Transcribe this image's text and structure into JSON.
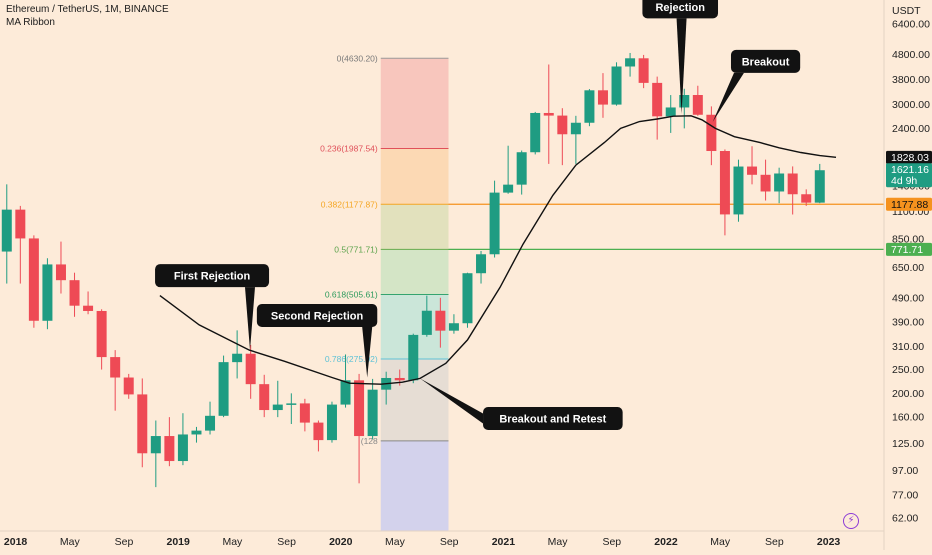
{
  "header": {
    "title": "Ethereum / TetherUS, 1M, BINANCE",
    "indicator": "MA Ribbon",
    "currency": "USDT"
  },
  "colors": {
    "background": "#fdebd9",
    "up": "#1f9c82",
    "down": "#ee4a55",
    "ma": "#111111",
    "fib_0": "#f8c6bd",
    "fib_0236": "#fcd9b4",
    "fib_0382": "#e2e1bd",
    "fib_05": "#d4e5c6",
    "fib_0618": "#cbe6d9",
    "fib_0786": "#e6ddd4",
    "fib_1": "#d3d2ec",
    "level_1177": "#f5921e",
    "level_771": "#4caf50",
    "price_tag": "#1f9c82"
  },
  "chart_data": {
    "type": "candlestick",
    "y_scale": "log",
    "ylim": [
      55,
      8000
    ],
    "xlim": [
      0,
      63
    ],
    "months": [
      "2018-01",
      "2018-02",
      "2018-03",
      "2018-04",
      "2018-05",
      "2018-06",
      "2018-07",
      "2018-08",
      "2018-09",
      "2018-10",
      "2018-11",
      "2018-12",
      "2019-01",
      "2019-02",
      "2019-03",
      "2019-04",
      "2019-05",
      "2019-06",
      "2019-07",
      "2019-08",
      "2019-09",
      "2019-10",
      "2019-11",
      "2019-12",
      "2020-01",
      "2020-02",
      "2020-03",
      "2020-04",
      "2020-05",
      "2020-06",
      "2020-07",
      "2020-08",
      "2020-09",
      "2020-10",
      "2020-11",
      "2020-12",
      "2021-01",
      "2021-02",
      "2021-03",
      "2021-04",
      "2021-05",
      "2021-06",
      "2021-07",
      "2021-08",
      "2021-09",
      "2021-10",
      "2021-11",
      "2021-12",
      "2022-01",
      "2022-02",
      "2022-03",
      "2022-04",
      "2022-05",
      "2022-06",
      "2022-07",
      "2022-08",
      "2022-09",
      "2022-10",
      "2022-11",
      "2022-12",
      "2023-01"
    ],
    "candles": [
      {
        "o": 756,
        "h": 1420,
        "l": 560,
        "c": 1120
      },
      {
        "o": 1120,
        "h": 1160,
        "l": 560,
        "c": 855
      },
      {
        "o": 855,
        "h": 880,
        "l": 370,
        "c": 395
      },
      {
        "o": 395,
        "h": 710,
        "l": 365,
        "c": 670
      },
      {
        "o": 670,
        "h": 830,
        "l": 510,
        "c": 578
      },
      {
        "o": 578,
        "h": 620,
        "l": 410,
        "c": 455
      },
      {
        "o": 455,
        "h": 520,
        "l": 420,
        "c": 433
      },
      {
        "o": 433,
        "h": 440,
        "l": 250,
        "c": 281
      },
      {
        "o": 281,
        "h": 300,
        "l": 170,
        "c": 232
      },
      {
        "o": 232,
        "h": 240,
        "l": 190,
        "c": 198
      },
      {
        "o": 198,
        "h": 230,
        "l": 100,
        "c": 114
      },
      {
        "o": 114,
        "h": 155,
        "l": 83,
        "c": 134
      },
      {
        "o": 134,
        "h": 160,
        "l": 101,
        "c": 106
      },
      {
        "o": 106,
        "h": 166,
        "l": 102,
        "c": 136
      },
      {
        "o": 136,
        "h": 146,
        "l": 126,
        "c": 141
      },
      {
        "o": 141,
        "h": 185,
        "l": 136,
        "c": 162
      },
      {
        "o": 162,
        "h": 285,
        "l": 160,
        "c": 268
      },
      {
        "o": 268,
        "h": 361,
        "l": 230,
        "c": 290
      },
      {
        "o": 290,
        "h": 315,
        "l": 190,
        "c": 218
      },
      {
        "o": 218,
        "h": 238,
        "l": 160,
        "c": 171
      },
      {
        "o": 171,
        "h": 225,
        "l": 160,
        "c": 180
      },
      {
        "o": 180,
        "h": 200,
        "l": 150,
        "c": 182
      },
      {
        "o": 182,
        "h": 190,
        "l": 140,
        "c": 152
      },
      {
        "o": 152,
        "h": 155,
        "l": 116,
        "c": 129
      },
      {
        "o": 129,
        "h": 185,
        "l": 126,
        "c": 180
      },
      {
        "o": 180,
        "h": 288,
        "l": 175,
        "c": 226
      },
      {
        "o": 226,
        "h": 240,
        "l": 86,
        "c": 134
      },
      {
        "o": 134,
        "h": 229,
        "l": 130,
        "c": 207
      },
      {
        "o": 207,
        "h": 245,
        "l": 180,
        "c": 231
      },
      {
        "o": 231,
        "h": 250,
        "l": 215,
        "c": 226
      },
      {
        "o": 226,
        "h": 350,
        "l": 220,
        "c": 346
      },
      {
        "o": 346,
        "h": 500,
        "l": 340,
        "c": 434
      },
      {
        "o": 434,
        "h": 490,
        "l": 307,
        "c": 360
      },
      {
        "o": 360,
        "h": 420,
        "l": 350,
        "c": 386
      },
      {
        "o": 386,
        "h": 620,
        "l": 370,
        "c": 617
      },
      {
        "o": 617,
        "h": 760,
        "l": 560,
        "c": 737
      },
      {
        "o": 737,
        "h": 1470,
        "l": 715,
        "c": 1314
      },
      {
        "o": 1314,
        "h": 2040,
        "l": 1300,
        "c": 1416
      },
      {
        "o": 1416,
        "h": 1950,
        "l": 1290,
        "c": 1919
      },
      {
        "o": 1919,
        "h": 2800,
        "l": 1880,
        "c": 2773
      },
      {
        "o": 2773,
        "h": 4370,
        "l": 1720,
        "c": 2706
      },
      {
        "o": 2706,
        "h": 2900,
        "l": 1700,
        "c": 2271
      },
      {
        "o": 2271,
        "h": 2700,
        "l": 1720,
        "c": 2530
      },
      {
        "o": 2530,
        "h": 3470,
        "l": 2450,
        "c": 3430
      },
      {
        "o": 3430,
        "h": 4030,
        "l": 2650,
        "c": 3000
      },
      {
        "o": 3000,
        "h": 4460,
        "l": 2970,
        "c": 4288
      },
      {
        "o": 4288,
        "h": 4868,
        "l": 3900,
        "c": 4631
      },
      {
        "o": 4631,
        "h": 4780,
        "l": 3500,
        "c": 3677
      },
      {
        "o": 3677,
        "h": 3900,
        "l": 2160,
        "c": 2687
      },
      {
        "o": 2687,
        "h": 3280,
        "l": 2300,
        "c": 2920
      },
      {
        "o": 2920,
        "h": 3480,
        "l": 2400,
        "c": 3282
      },
      {
        "o": 3282,
        "h": 3580,
        "l": 2700,
        "c": 2727
      },
      {
        "o": 2727,
        "h": 2950,
        "l": 1700,
        "c": 1941
      },
      {
        "o": 1941,
        "h": 1970,
        "l": 880,
        "c": 1071
      },
      {
        "o": 1071,
        "h": 1790,
        "l": 1000,
        "c": 1678
      },
      {
        "o": 1678,
        "h": 2030,
        "l": 1420,
        "c": 1553
      },
      {
        "o": 1553,
        "h": 1790,
        "l": 1220,
        "c": 1328
      },
      {
        "o": 1328,
        "h": 1660,
        "l": 1190,
        "c": 1572
      },
      {
        "o": 1572,
        "h": 1680,
        "l": 1070,
        "c": 1294
      },
      {
        "o": 1294,
        "h": 1355,
        "l": 1160,
        "c": 1196
      },
      {
        "o": 1196,
        "h": 1720,
        "l": 1190,
        "c": 1621
      }
    ],
    "ma_line": [
      {
        "x": 11.3,
        "y": 500
      },
      {
        "x": 14.2,
        "y": 380
      },
      {
        "x": 17.9,
        "y": 300
      },
      {
        "x": 20.5,
        "y": 270
      },
      {
        "x": 24.0,
        "y": 232
      },
      {
        "x": 25.3,
        "y": 220
      },
      {
        "x": 27.6,
        "y": 218
      },
      {
        "x": 29.2,
        "y": 222
      },
      {
        "x": 30.5,
        "y": 230
      },
      {
        "x": 32.4,
        "y": 265
      },
      {
        "x": 34.0,
        "y": 330
      },
      {
        "x": 36.4,
        "y": 540
      },
      {
        "x": 38.1,
        "y": 810
      },
      {
        "x": 40.3,
        "y": 1280
      },
      {
        "x": 42.0,
        "y": 1700
      },
      {
        "x": 44.1,
        "y": 2100
      },
      {
        "x": 45.3,
        "y": 2400
      },
      {
        "x": 46.7,
        "y": 2560
      },
      {
        "x": 48.0,
        "y": 2620
      },
      {
        "x": 49.2,
        "y": 2690
      },
      {
        "x": 50.5,
        "y": 2700
      },
      {
        "x": 51.3,
        "y": 2600
      },
      {
        "x": 52.3,
        "y": 2400
      },
      {
        "x": 53.7,
        "y": 2220
      },
      {
        "x": 55.6,
        "y": 2100
      },
      {
        "x": 57.0,
        "y": 2000
      },
      {
        "x": 58.6,
        "y": 1915
      },
      {
        "x": 60.0,
        "y": 1860
      },
      {
        "x": 61.2,
        "y": 1830
      }
    ],
    "fib_box": {
      "x_start": 27.6,
      "x_end": 32.6,
      "top": 4630.2,
      "bottom": 55,
      "levels": [
        {
          "ratio": 0,
          "value": 4630.2,
          "label": "0(4630.20)"
        },
        {
          "ratio": 0.236,
          "value": 1987.54,
          "label": "0.236(1987.54)"
        },
        {
          "ratio": 0.382,
          "value": 1177.87,
          "label": "0.382(1177.87)"
        },
        {
          "ratio": 0.5,
          "value": 771.71,
          "label": "0.5(771.71)"
        },
        {
          "ratio": 0.618,
          "value": 505.61,
          "label": "0.618(505.61)"
        },
        {
          "ratio": 0.786,
          "value": 275.92,
          "label": "0.786(275.92)"
        },
        {
          "ratio": 1,
          "value": 128,
          "label": "(128"
        }
      ]
    },
    "h_lines": [
      {
        "value": 1177.88,
        "label": "1177.88",
        "color": "#f5921e",
        "x_start": 32.6
      },
      {
        "value": 771.71,
        "label": "771.71",
        "color": "#4caf50",
        "x_start": 32.6
      }
    ],
    "y_ticks": [
      "62.00",
      "77.00",
      "97.00",
      "125.00",
      "160.00",
      "200.00",
      "250.00",
      "310.00",
      "390.00",
      "490.00",
      "650.00",
      "850.00",
      "1100.00",
      "1400.00",
      "1828.03",
      "2400.00",
      "3000.00",
      "3800.00",
      "4800.00",
      "6400.00"
    ],
    "y_tick_values": [
      62,
      77,
      97,
      125,
      160,
      200,
      250,
      310,
      390,
      490,
      650,
      850,
      1100,
      1400,
      1828.03,
      2400,
      3000,
      3800,
      4800,
      6400
    ],
    "x_ticks": [
      {
        "label": "2018",
        "x": 0.65,
        "bold": true
      },
      {
        "label": "May",
        "x": 4.65,
        "bold": false
      },
      {
        "label": "Sep",
        "x": 8.65,
        "bold": false
      },
      {
        "label": "2019",
        "x": 12.65,
        "bold": true
      },
      {
        "label": "May",
        "x": 16.65,
        "bold": false
      },
      {
        "label": "Sep",
        "x": 20.65,
        "bold": false
      },
      {
        "label": "2020",
        "x": 24.65,
        "bold": true
      },
      {
        "label": "May",
        "x": 28.65,
        "bold": false
      },
      {
        "label": "Sep",
        "x": 32.65,
        "bold": false
      },
      {
        "label": "2021",
        "x": 36.65,
        "bold": true
      },
      {
        "label": "May",
        "x": 40.65,
        "bold": false
      },
      {
        "label": "Sep",
        "x": 44.65,
        "bold": false
      },
      {
        "label": "2022",
        "x": 48.65,
        "bold": true
      },
      {
        "label": "May",
        "x": 52.65,
        "bold": false
      },
      {
        "label": "Sep",
        "x": 56.65,
        "bold": false
      },
      {
        "label": "2023",
        "x": 60.65,
        "bold": true
      }
    ],
    "price_tags": [
      {
        "value": 1828.03,
        "text": "1828.03",
        "bg": "#121212",
        "fg": "#ffffff"
      },
      {
        "value": 1621.16,
        "text": "1621.16",
        "sub": "4d 9h",
        "bg": "#1f9c82",
        "fg": "#ffffff"
      },
      {
        "value": 1177.88,
        "text": "1177.88",
        "bg": "#f5921e",
        "fg": "#111111"
      },
      {
        "value": 771.71,
        "text": "771.71",
        "bg": "#4caf50",
        "fg": "#ffffff"
      }
    ],
    "annotations": [
      {
        "text": "First Rejection",
        "x": 15.15,
        "y": 603,
        "tip_x": 17.95,
        "tip_y": 300
      },
      {
        "text": "Second Rejection",
        "x": 22.9,
        "y": 415,
        "tip_x": 26.6,
        "tip_y": 232
      },
      {
        "text": "Breakout and Retest",
        "x": 40.3,
        "y": 158,
        "tip_x": 30.5,
        "tip_y": 230
      },
      {
        "text": "Rejection",
        "x": 49.7,
        "y": 7500,
        "tip_x": 49.8,
        "tip_y": 2750
      },
      {
        "text": "Breakout",
        "x": 56.0,
        "y": 4500,
        "tip_x": 52.1,
        "tip_y": 2550
      }
    ]
  }
}
